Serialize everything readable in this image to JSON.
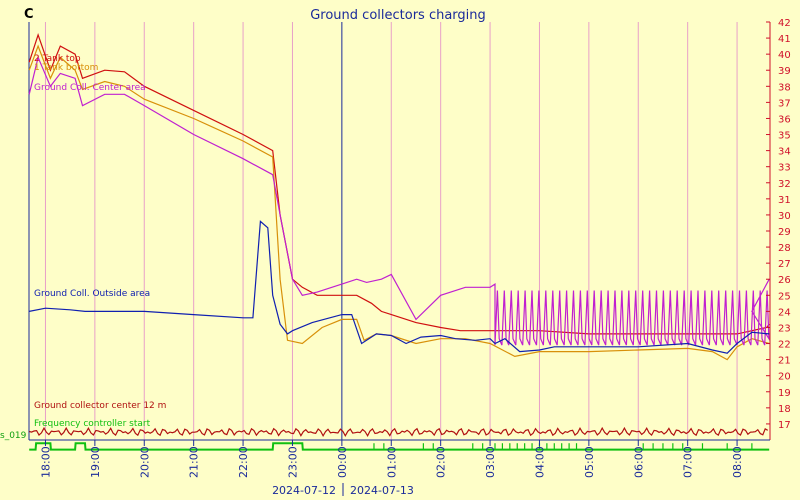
{
  "corner_label": "C",
  "left_edge_label": "s_019",
  "chart_data": {
    "type": "line",
    "title": "Ground collectors charging",
    "x_ticks": [
      "18:00",
      "19:00",
      "20:00",
      "21:00",
      "22:00",
      "23:00",
      "00:00",
      "01:00",
      "02:00",
      "03:00",
      "04:00",
      "05:00",
      "06:00",
      "07:00",
      "08:00"
    ],
    "x_range": [
      "2024-07-12 17:40",
      "2024-07-13 08:40"
    ],
    "date_left": "2024-07-12",
    "date_right": "2024-07-13",
    "day_boundary": "00:00",
    "ylim": [
      16,
      42
    ],
    "y_ticks": [
      17,
      18,
      19,
      20,
      21,
      22,
      23,
      24,
      25,
      26,
      27,
      28,
      29,
      30,
      31,
      32,
      33,
      34,
      35,
      36,
      37,
      38,
      39,
      40,
      41,
      42
    ],
    "colors": {
      "background": "#fefec8",
      "grid": "#e8a0c8",
      "axis": "#1a2a9a",
      "tick_text": "#d0102a"
    },
    "series": [
      {
        "name": "2 Tank top",
        "color": "#d01010",
        "x": [
          17.67,
          17.85,
          18.1,
          18.3,
          18.6,
          18.75,
          19.2,
          19.6,
          20.0,
          21.0,
          22.0,
          22.6,
          22.75,
          23.0,
          23.2,
          23.5,
          24.0,
          24.3,
          24.6,
          24.8,
          25.0,
          25.5,
          26.0,
          26.4,
          27.0,
          27.5,
          28.0,
          29.0,
          30.0,
          31.0,
          32.0,
          32.3,
          32.6,
          32.65
        ],
        "y": [
          39.5,
          41.2,
          39.0,
          40.5,
          40.0,
          38.5,
          39.0,
          38.9,
          38.0,
          36.5,
          35.0,
          34.0,
          30.0,
          26.0,
          25.5,
          25.0,
          25.0,
          25.0,
          24.5,
          24.0,
          23.8,
          23.3,
          23.0,
          22.8,
          22.8,
          22.8,
          22.8,
          22.6,
          22.6,
          22.6,
          22.6,
          22.8,
          23.0,
          23.2
        ]
      },
      {
        "name": "1 Tank bottom",
        "color": "#d8900a",
        "x": [
          17.67,
          17.85,
          18.1,
          18.3,
          18.6,
          18.75,
          19.2,
          19.6,
          20.0,
          21.0,
          22.0,
          22.6,
          22.75,
          22.9,
          23.2,
          23.6,
          24.0,
          24.3,
          24.45,
          24.7,
          25.0,
          25.5,
          26.0,
          26.5,
          27.0,
          27.5,
          28.0,
          29.0,
          30.0,
          31.0,
          31.5,
          31.8,
          32.0,
          32.3,
          32.65
        ],
        "y": [
          39.0,
          40.5,
          38.5,
          39.8,
          39.0,
          37.8,
          38.3,
          38.0,
          37.2,
          36.0,
          34.6,
          33.6,
          26.0,
          22.2,
          22.0,
          23.0,
          23.5,
          23.5,
          22.2,
          22.6,
          22.5,
          22.0,
          22.3,
          22.3,
          22.0,
          21.2,
          21.5,
          21.5,
          21.6,
          21.7,
          21.5,
          21.0,
          21.8,
          22.3,
          22.0
        ]
      },
      {
        "name": "Ground Coll. Center area",
        "color": "#c020d0",
        "x": [
          17.67,
          17.85,
          18.1,
          18.3,
          18.6,
          18.75,
          19.2,
          19.6,
          20.0,
          21.0,
          22.0,
          22.6,
          22.75,
          23.0,
          23.2,
          23.5,
          24.0,
          24.3,
          24.5,
          24.8,
          25.0,
          25.5,
          26.0,
          26.5,
          27.0,
          27.1
        ],
        "y": [
          37.5,
          39.8,
          38.0,
          38.8,
          38.5,
          36.8,
          37.5,
          37.5,
          36.8,
          35.0,
          33.5,
          32.5,
          30.0,
          26.0,
          25.0,
          25.2,
          25.7,
          26.0,
          25.8,
          26.0,
          26.3,
          23.5,
          25.0,
          25.5,
          25.5,
          25.7
        ]
      },
      {
        "name": "Ground Coll. Outside area",
        "color": "#1020b0",
        "x": [
          17.67,
          18.0,
          18.5,
          18.8,
          19.0,
          20.0,
          21.0,
          22.0,
          22.2,
          22.35,
          22.5,
          22.6,
          22.75,
          22.9,
          23.0,
          23.4,
          24.0,
          24.2,
          24.4,
          24.7,
          25.0,
          25.3,
          25.6,
          26.0,
          26.3,
          26.7,
          27.0,
          27.1,
          27.3,
          27.6,
          28.0,
          28.3,
          29.0,
          30.0,
          31.0,
          31.5,
          31.8,
          32.0,
          32.3,
          32.65
        ],
        "y": [
          24.0,
          24.2,
          24.1,
          24.0,
          24.0,
          24.0,
          23.8,
          23.6,
          23.6,
          29.6,
          29.2,
          25.0,
          23.2,
          22.6,
          22.8,
          23.3,
          23.8,
          23.8,
          22.0,
          22.6,
          22.5,
          22.0,
          22.4,
          22.5,
          22.3,
          22.2,
          22.3,
          22.0,
          22.3,
          21.5,
          21.6,
          21.8,
          21.8,
          21.8,
          22.0,
          21.6,
          21.4,
          22.0,
          22.7,
          22.6
        ]
      },
      {
        "name": "Ground collector center 12 m",
        "color": "#b01010",
        "x": [
          17.67,
          20.0,
          22.0,
          24.0,
          26.0,
          28.0,
          30.0,
          32.0,
          32.65
        ],
        "y": [
          16.5,
          16.5,
          16.5,
          16.6,
          16.5,
          16.5,
          16.5,
          16.5,
          16.5
        ]
      },
      {
        "name": "Frequency controller start",
        "color": "#10c010",
        "x": [
          17.67,
          17.8,
          17.81,
          18.1,
          18.11,
          18.6,
          18.61,
          18.8,
          18.81,
          22.6,
          22.61,
          23.2,
          23.21,
          32.65
        ],
        "y": [
          15.4,
          15.4,
          15.8,
          15.8,
          15.4,
          15.4,
          15.8,
          15.8,
          15.4,
          15.4,
          15.8,
          15.8,
          15.4,
          15.4
        ]
      }
    ]
  }
}
